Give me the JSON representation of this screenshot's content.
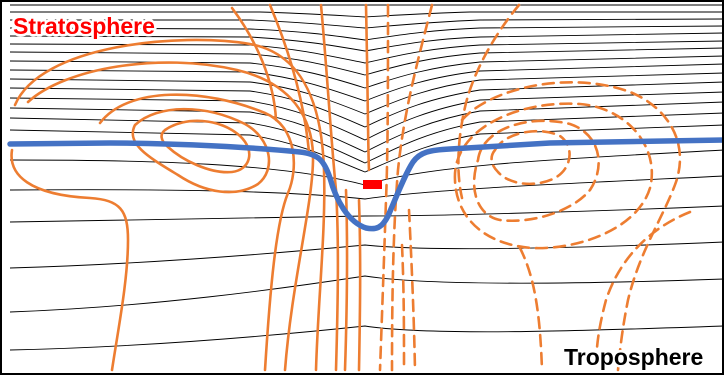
{
  "labels": {
    "upper": "Stratosphere",
    "lower": "Troposphere"
  },
  "colors": {
    "isentropes": "#000000",
    "tropopause": "#4472C4",
    "anomaly_contours": "#ED7D31",
    "upper_label": "#FF0000",
    "lower_label": "#000000",
    "label_halo": "#FFFFFF",
    "marker": "#FF0000",
    "frame": "#000000",
    "background": "#FFFFFF"
  },
  "elements": {
    "isentropes": "thin black lines, bunched above the tropopause and dipping toward the center",
    "tropopause": "thick blue line with a sharp fold near the center",
    "positive_anomaly_contours": "solid orange contours, closed loop on the left",
    "negative_anomaly_contours": "dashed orange contours, closed loop on the right",
    "marker": "small red bar at the center"
  }
}
